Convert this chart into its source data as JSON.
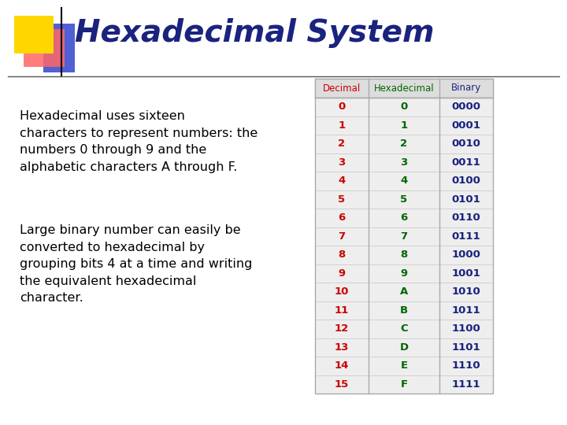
{
  "title": "Hexadecimal System",
  "title_color": "#1a237e",
  "bg_color": "#ffffff",
  "text_para1": "Hexadecimal uses sixteen\ncharacters to represent numbers: the\nnumbers 0 through 9 and the\nalphabetic characters A through F.",
  "text_para2": "Large binary number can easily be\nconverted to hexadecimal by\ngrouping bits 4 at a time and writing\nthe equivalent hexadecimal\ncharacter.",
  "text_color": "#000000",
  "table_header": [
    "Decimal",
    "Hexadecimal",
    "Binary"
  ],
  "header_colors": [
    "#cc0000",
    "#006600",
    "#1a237e"
  ],
  "decimal_col": [
    "0",
    "1",
    "2",
    "3",
    "4",
    "5",
    "6",
    "7",
    "8",
    "9",
    "10",
    "11",
    "12",
    "13",
    "14",
    "15"
  ],
  "hex_col": [
    "0",
    "1",
    "2",
    "3",
    "4",
    "5",
    "6",
    "7",
    "8",
    "9",
    "A",
    "B",
    "C",
    "D",
    "E",
    "F"
  ],
  "binary_col": [
    "0000",
    "0001",
    "0010",
    "0011",
    "0100",
    "0101",
    "0110",
    "0111",
    "1000",
    "1001",
    "1010",
    "1011",
    "1100",
    "1101",
    "1110",
    "1111"
  ],
  "decimal_col_color": "#cc0000",
  "hex_col_color": "#006600",
  "binary_col_color": "#1a237e",
  "table_bg": "#eeeeee",
  "table_border": "#aaaaaa",
  "line_color": "#555555",
  "accent_yellow": "#FFD700",
  "accent_red": "#FF6666",
  "accent_blue": "#3344CC",
  "accent_blue_rect_color": "#4455dd"
}
